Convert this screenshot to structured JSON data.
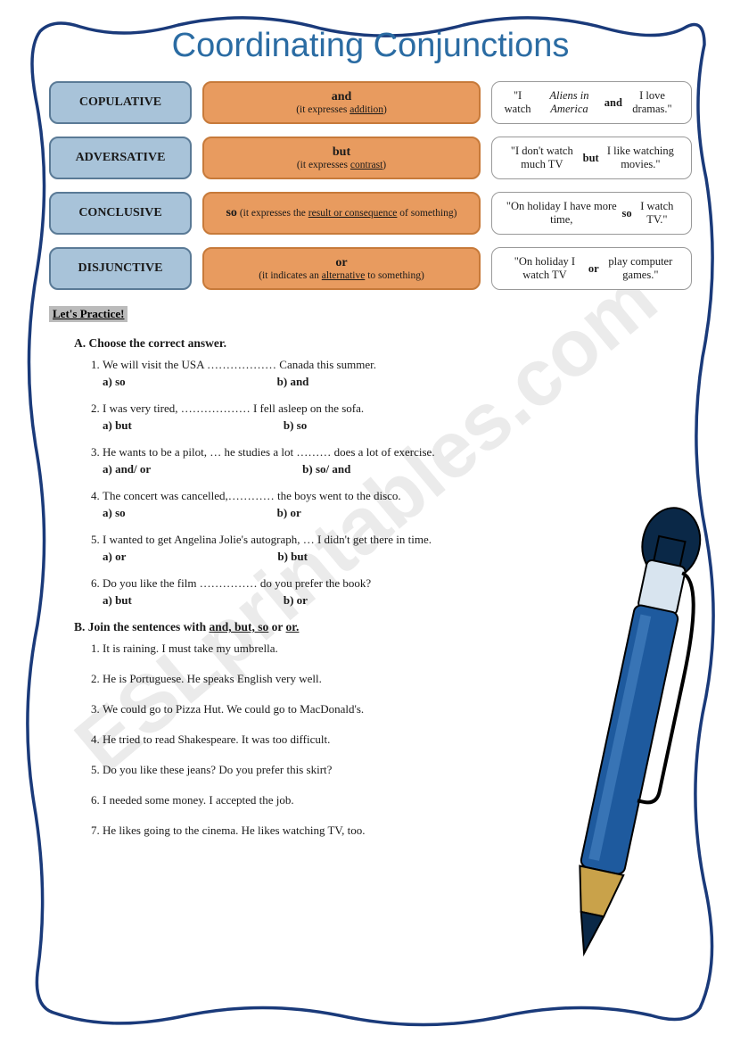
{
  "title": "Coordinating Conjunctions",
  "watermark": "ESLprintables.com",
  "colors": {
    "title": "#2b6ca3",
    "blue_bg": "#a8c3d9",
    "blue_border": "#5a7a96",
    "orange_bg": "#e89b5f",
    "orange_border": "#c77a3a",
    "example_border": "#999999",
    "wave_border": "#1a3a7a",
    "pen_body": "#1e5a9e",
    "pen_dark": "#0a2847"
  },
  "rows": [
    {
      "category": "COPULATIVE",
      "word": "and",
      "explanation_pre": "(it expresses ",
      "explanation_u": "addition",
      "explanation_post": ")",
      "example": "\"I watch <i>Aliens in America</i> <b>and</b> I love dramas.\""
    },
    {
      "category": "ADVERSATIVE",
      "word": "but",
      "explanation_pre": "(it expresses ",
      "explanation_u": "contrast",
      "explanation_post": ")",
      "example": "\"I don't watch much TV <b>but</b> I like watching movies.\""
    },
    {
      "category": "CONCLUSIVE",
      "word": "so",
      "inline": true,
      "explanation_pre": " (it expresses the ",
      "explanation_u": "result or consequence",
      "explanation_post": " of something)",
      "example": "\"On holiday I have more time, <b>so</b> I watch TV.\""
    },
    {
      "category": "DISJUNCTIVE",
      "word": "or",
      "explanation_pre": "(it indicates an ",
      "explanation_u": "alternative",
      "explanation_post": " to something)",
      "example": "\"On holiday I watch TV <b>or</b> play computer games.\""
    }
  ],
  "practice_label": "Let's Practice!",
  "sectionA": {
    "head": "A.  Choose the correct answer.",
    "questions": [
      {
        "text": "We will visit the USA ……………… Canada this summer.",
        "a": "a)  so",
        "b": "b) and"
      },
      {
        "text": "I was very tired, ……………… I fell asleep on the sofa.",
        "a": "a)  but",
        "b": "b) so"
      },
      {
        "text": "He wants to be a pilot, … he studies a lot ……… does a lot of exercise.",
        "a": "a)  and/ or",
        "b": "b) so/ and"
      },
      {
        "text": "The concert was cancelled,………… the boys went to the disco.",
        "a": "a)  so",
        "b": "b) or"
      },
      {
        "text": "I wanted to get Angelina Jolie's autograph, … I didn't get there in time.",
        "a": "a)  or",
        "b": "b) but"
      },
      {
        "text": "Do you like the film …………… do you prefer the book?",
        "a": "a)  but",
        "b": "b) or"
      }
    ]
  },
  "sectionB": {
    "head": "B.  Join the sentences with <u>and, but, so</u> or <u>or.</u>",
    "items": [
      "It is raining. I must take my umbrella.",
      "He is Portuguese. He speaks English very well.",
      "We could go to Pizza Hut. We could go to MacDonald's.",
      "He tried to read Shakespeare. It was too difficult.",
      "Do you like these jeans? Do you prefer this skirt?",
      "I needed some money. I accepted the job.",
      "He likes going to the cinema. He likes watching TV, too."
    ]
  }
}
